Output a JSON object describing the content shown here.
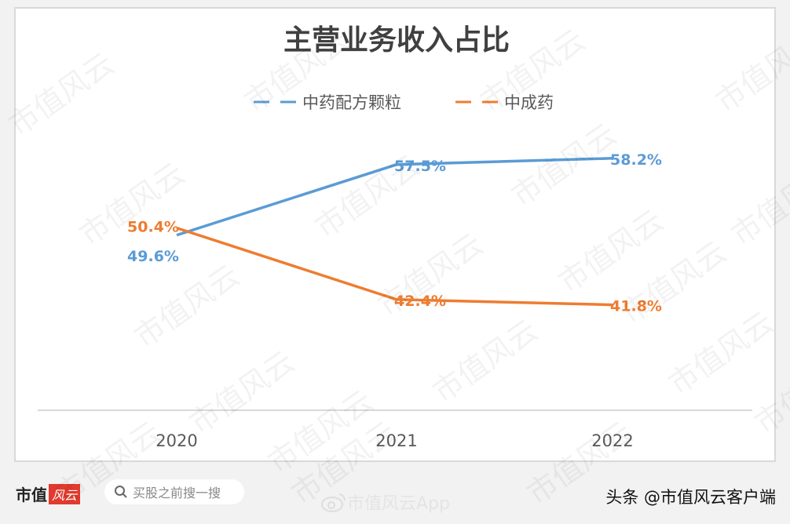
{
  "chart_data": {
    "type": "line",
    "title": "主营业务收入占比",
    "categories": [
      "2020",
      "2021",
      "2022"
    ],
    "series": [
      {
        "name": "中药配方颗粒",
        "values": [
          49.6,
          57.5,
          58.2
        ],
        "labels": [
          "49.6%",
          "57.5%",
          "58.2%"
        ],
        "color": "#5b9bd5"
      },
      {
        "name": "中成药",
        "values": [
          50.4,
          42.4,
          41.8
        ],
        "labels": [
          "50.4%",
          "42.4%",
          "41.8%"
        ],
        "color": "#ed7d31"
      }
    ],
    "ylim": [
      30,
      70
    ],
    "legend": "top",
    "grid": false,
    "xlabel": "",
    "ylabel": ""
  },
  "footer": {
    "logo": "市值风云",
    "search_placeholder": "买股之前搜一搜",
    "weibo_handle": "市值风云App",
    "toutiao_handle": "头条 @市值风云客户端"
  },
  "watermark": "市值风云"
}
